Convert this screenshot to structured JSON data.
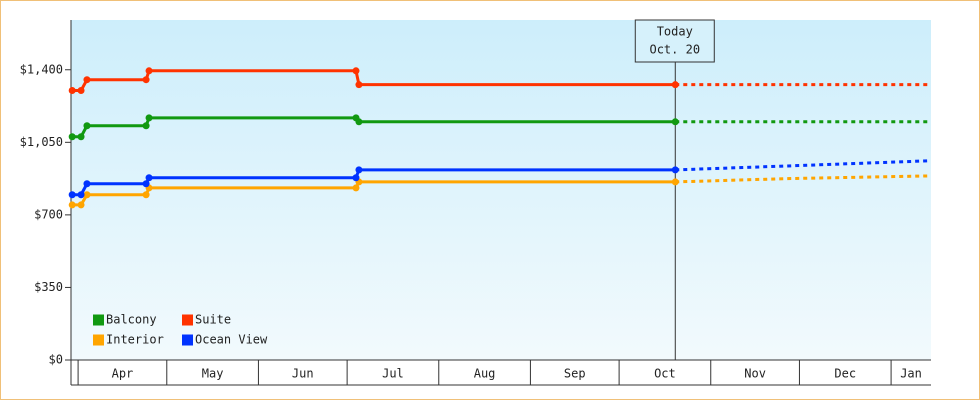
{
  "chart_data": {
    "type": "line",
    "x": [
      88,
      91,
      93,
      113,
      114,
      184,
      185,
      292
    ],
    "forecast_x": [
      292,
      330,
      378
    ],
    "series": [
      {
        "name": "Balcony",
        "color": "#119911",
        "values": [
          1077,
          1077,
          1130,
          1130,
          1168,
          1168,
          1149,
          1149
        ],
        "forecast_values": [
          1149,
          1149,
          1149
        ]
      },
      {
        "name": "Suite",
        "color": "#ff3300",
        "values": [
          1300,
          1300,
          1352,
          1352,
          1395,
          1395,
          1328,
          1328
        ],
        "forecast_values": [
          1328,
          1328,
          1328
        ]
      },
      {
        "name": "Interior",
        "color": "#ffa500",
        "values": [
          748,
          748,
          797,
          797,
          830,
          830,
          859,
          859
        ],
        "forecast_values": [
          859,
          875,
          888
        ]
      },
      {
        "name": "Ocean View",
        "color": "#0033ff",
        "values": [
          797,
          797,
          850,
          850,
          879,
          879,
          917,
          917
        ],
        "forecast_values": [
          917,
          936,
          961
        ]
      }
    ],
    "ylim": [
      0,
      1640
    ],
    "yticks": [
      {
        "value": 0,
        "label": "$0"
      },
      {
        "value": 350,
        "label": "$350"
      },
      {
        "value": 700,
        "label": "$700"
      },
      {
        "value": 1050,
        "label": "$1,050"
      },
      {
        "value": 1400,
        "label": "$1,400"
      }
    ],
    "xlim": [
      87.6,
      378.5
    ],
    "xticks": [
      {
        "value": 90,
        "label": "Apr"
      },
      {
        "value": 120,
        "label": "May"
      },
      {
        "value": 151,
        "label": "Jun"
      },
      {
        "value": 181,
        "label": "Jul"
      },
      {
        "value": 212,
        "label": "Aug"
      },
      {
        "value": 243,
        "label": "Sep"
      },
      {
        "value": 273,
        "label": "Oct"
      },
      {
        "value": 304,
        "label": "Nov"
      },
      {
        "value": 334,
        "label": "Dec"
      },
      {
        "value": 365,
        "label": "Jan"
      }
    ],
    "today": {
      "x": 292,
      "label": "Today",
      "date": "Oct. 20"
    }
  }
}
